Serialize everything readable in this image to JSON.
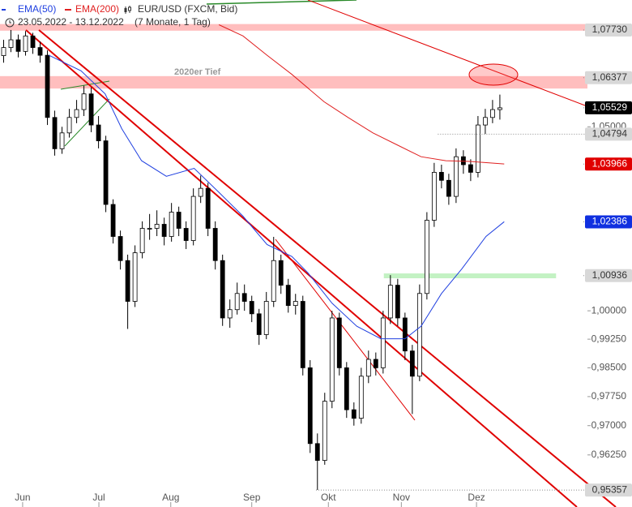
{
  "chart_data": {
    "type": "candlestick",
    "title": "EUR/USD (FXCM, Bid)",
    "subtitle": "23.05.2022 - 13.12.2022",
    "period": "(7 Monate, 1 Tag)",
    "annotation": "2020er Tief",
    "log_scale": true,
    "grid": false,
    "ylim": [
      0.9493,
      1.0859
    ],
    "yticks": [
      {
        "value": 0.9625,
        "label": "0,96250"
      },
      {
        "value": 0.97,
        "label": "0,97000"
      },
      {
        "value": 0.9775,
        "label": "0,97750"
      },
      {
        "value": 0.985,
        "label": "0,98500"
      },
      {
        "value": 0.9925,
        "label": "0,99250"
      },
      {
        "value": 1.0,
        "label": "1,00000"
      },
      {
        "value": 1.05,
        "label": "1,05000"
      }
    ],
    "xlim": [
      -0.5,
      80
    ],
    "xticks": [
      {
        "value": 2.6,
        "label": "Jun"
      },
      {
        "value": 13.05,
        "label": "Jul"
      },
      {
        "value": 22.9,
        "label": "Aug"
      },
      {
        "value": 34.0,
        "label": "Sep"
      },
      {
        "value": 44.5,
        "label": "Okt"
      },
      {
        "value": 54.5,
        "label": "Nov"
      },
      {
        "value": 64.8,
        "label": "Dez"
      }
    ],
    "up_color": "#ffffff",
    "down_color": "#000000",
    "candles": [
      [
        1.07,
        1.0745,
        1.068,
        1.0723
      ],
      [
        1.0723,
        1.0773,
        1.071,
        1.0745
      ],
      [
        1.0745,
        1.076,
        1.0695,
        1.0712
      ],
      [
        1.0712,
        1.077,
        1.07,
        1.0756
      ],
      [
        1.0756,
        1.0765,
        1.0705,
        1.0723
      ],
      [
        1.0723,
        1.074,
        1.068,
        1.0701
      ],
      [
        1.0701,
        1.0715,
        1.0505,
        1.0526
      ],
      [
        1.0526,
        1.0545,
        1.042,
        1.0439
      ],
      [
        1.0439,
        1.05,
        1.0425,
        1.0483
      ],
      [
        1.0483,
        1.055,
        1.047,
        1.0526
      ],
      [
        1.0526,
        1.0575,
        1.051,
        1.0548
      ],
      [
        1.0548,
        1.0615,
        1.053,
        1.0592
      ],
      [
        1.0592,
        1.061,
        1.0485,
        1.0505
      ],
      [
        1.0505,
        1.053,
        1.044,
        1.0461
      ],
      [
        1.0461,
        1.0475,
        1.0265,
        1.0286
      ],
      [
        1.0286,
        1.03,
        1.018,
        1.0199
      ],
      [
        1.0199,
        1.0215,
        1.011,
        1.0134
      ],
      [
        1.0134,
        1.015,
        0.9952,
        1.0025
      ],
      [
        1.0025,
        1.0175,
        1.001,
        1.0155
      ],
      [
        1.0155,
        1.024,
        1.014,
        1.0221
      ],
      [
        1.0221,
        1.026,
        1.019,
        1.0221
      ],
      [
        1.0221,
        1.027,
        1.02,
        1.0232
      ],
      [
        1.0232,
        1.025,
        1.0175,
        1.0199
      ],
      [
        1.0199,
        1.029,
        1.0185,
        1.0265
      ],
      [
        1.0265,
        1.028,
        1.02,
        1.0221
      ],
      [
        1.0221,
        1.024,
        1.0165,
        1.0188
      ],
      [
        1.0188,
        1.033,
        1.0175,
        1.0308
      ],
      [
        1.0308,
        1.0365,
        1.029,
        1.033
      ],
      [
        1.033,
        1.0345,
        1.02,
        1.0221
      ],
      [
        1.0221,
        1.024,
        1.011,
        1.0134
      ],
      [
        1.0134,
        1.015,
        0.996,
        0.9981
      ],
      [
        0.9981,
        1.003,
        0.9955,
        1.0003
      ],
      [
        1.0003,
        1.0075,
        0.999,
        1.0046
      ],
      [
        1.0046,
        1.007,
        1.0,
        1.0025
      ],
      [
        1.0025,
        1.004,
        0.997,
        0.9992
      ],
      [
        0.9992,
        1.0005,
        0.991,
        0.9937
      ],
      [
        0.9937,
        1.005,
        0.9925,
        1.0025
      ],
      [
        1.0025,
        1.0198,
        1.001,
        1.0134
      ],
      [
        1.0134,
        1.015,
        1.0045,
        1.0068
      ],
      [
        1.0068,
        1.0085,
        0.9995,
        1.0014
      ],
      [
        1.0014,
        1.0045,
        0.999,
        1.0025
      ],
      [
        1.0025,
        1.004,
        0.983,
        0.985
      ],
      [
        0.985,
        0.987,
        0.963,
        0.9654
      ],
      [
        0.9654,
        0.968,
        0.9536,
        0.9611
      ],
      [
        0.9611,
        0.9785,
        0.96,
        0.9763
      ],
      [
        0.9763,
        1.0,
        0.9745,
        0.9981
      ],
      [
        0.9981,
        0.9995,
        0.983,
        0.985
      ],
      [
        0.985,
        0.9865,
        0.972,
        0.9741
      ],
      [
        0.9741,
        0.976,
        0.97,
        0.9719
      ],
      [
        0.9719,
        0.985,
        0.9705,
        0.9828
      ],
      [
        0.9828,
        0.9895,
        0.981,
        0.9872
      ],
      [
        0.9872,
        0.989,
        0.983,
        0.985
      ],
      [
        0.985,
        1.0,
        0.9835,
        0.9981
      ],
      [
        0.9981,
        1.0095,
        0.9965,
        1.0068
      ],
      [
        1.0068,
        1.0085,
        0.996,
        0.9981
      ],
      [
        0.9981,
        0.9995,
        0.987,
        0.9894
      ],
      [
        0.9894,
        0.991,
        0.973,
        0.9828
      ],
      [
        0.9828,
        1.007,
        0.9815,
        1.0046
      ],
      [
        1.0046,
        1.0265,
        1.003,
        1.0243
      ],
      [
        1.0243,
        1.04,
        1.0225,
        1.0374
      ],
      [
        1.0374,
        1.0395,
        1.033,
        1.0352
      ],
      [
        1.0352,
        1.037,
        1.0285,
        1.0308
      ],
      [
        1.0308,
        1.044,
        1.029,
        1.0417
      ],
      [
        1.0417,
        1.0435,
        1.037,
        1.0395
      ],
      [
        1.0395,
        1.041,
        1.035,
        1.0374
      ],
      [
        1.0374,
        1.053,
        1.036,
        1.0505
      ],
      [
        1.0505,
        1.055,
        1.048,
        1.0526
      ],
      [
        1.0526,
        1.0575,
        1.051,
        1.0548
      ],
      [
        1.0548,
        1.059,
        1.052,
        1.0553
      ]
    ],
    "lines": [
      {
        "name": "EMA(50)",
        "color": "#2040e0",
        "x": [
          6.2,
          10.6,
          13.9,
          16.2,
          18.9,
          22.3,
          26.1,
          29.5,
          32.8,
          36.1,
          39.5,
          41.7,
          45.0,
          48.4,
          51.7,
          55.0,
          57.2,
          60.0,
          62.8,
          66.1,
          68.6
        ],
        "values": [
          1.0701,
          1.0657,
          1.0592,
          1.0494,
          1.0406,
          1.0363,
          1.0385,
          1.0319,
          1.0254,
          1.0177,
          1.0145,
          1.0101,
          1.002,
          0.9959,
          0.9926,
          0.9926,
          0.9959,
          1.0046,
          1.0112,
          1.0199,
          1.0239
        ]
      },
      {
        "name": "EMA(200)",
        "color": "#e02020",
        "x": [
          29.5,
          32.8,
          36.1,
          39.5,
          43.9,
          47.2,
          50.6,
          53.9,
          57.2,
          60.6,
          63.9,
          68.6
        ],
        "values": [
          1.0788,
          1.0756,
          1.0701,
          1.0647,
          1.057,
          1.0526,
          1.0483,
          1.045,
          1.0417,
          1.0406,
          1.0404,
          1.0397
        ]
      }
    ],
    "zones": [
      {
        "low": 1.0771,
        "high": 1.079,
        "color": "#ffb3b3"
      },
      {
        "low": 1.0607,
        "high": 1.0642,
        "color": "#ffb3b3"
      },
      {
        "low": 1.00866,
        "high": 1.00996,
        "color": "#b8f0b8",
        "x": [
          52.1,
          75.7
        ]
      }
    ],
    "levels": [
      {
        "value": 1.0773,
        "label": "1,07730",
        "color": "#d8d8d8",
        "text_color": "#333333"
      },
      {
        "value": 1.06377,
        "label": "1,06377",
        "color": "#d8d8d8",
        "text_color": "#333333"
      },
      {
        "value": 1.05529,
        "label": "1,05529",
        "color": "#000000",
        "text_color": "#ffffff"
      },
      {
        "value": 1.04794,
        "label": "1,04794",
        "color": "#d8d8d8",
        "text_color": "#333333",
        "from": 59.5
      },
      {
        "value": 1.03966,
        "label": "1,03966",
        "color": "#e00000",
        "text_color": "#ffffff"
      },
      {
        "value": 1.02386,
        "label": "1,02386",
        "color": "#1030e0",
        "text_color": "#ffffff"
      },
      {
        "value": 1.00936,
        "label": "1,00936",
        "color": "#d8d8d8",
        "text_color": "#333333"
      },
      {
        "value": 0.95357,
        "label": "0,95357",
        "color": "#d8d8d8",
        "text_color": "#333333",
        "from": 42.8
      }
    ]
  }
}
